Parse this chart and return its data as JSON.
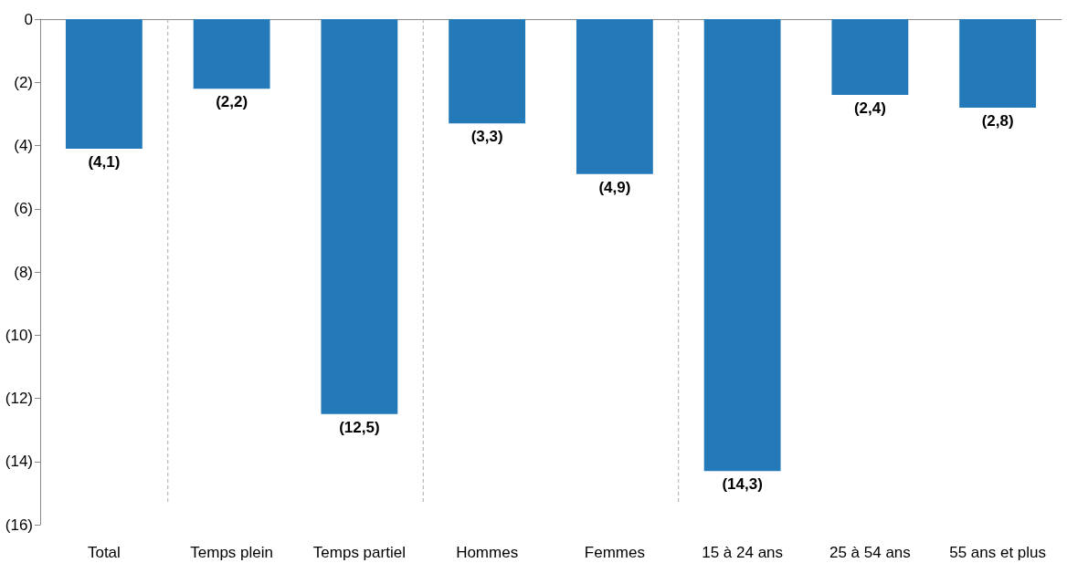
{
  "chart_data": {
    "type": "bar",
    "categories": [
      "Total",
      "Temps plein",
      "Temps partiel",
      "Hommes",
      "Femmes",
      "15 à 24 ans",
      "25 à 54 ans",
      "55 ans et plus"
    ],
    "values": [
      -4.1,
      -2.2,
      -12.5,
      -3.3,
      -4.9,
      -14.3,
      -2.4,
      -2.8
    ],
    "value_labels": [
      "(4,1)",
      "(2,2)",
      "(12,5)",
      "(3,3)",
      "(4,9)",
      "(14,3)",
      "(2,4)",
      "(2,8)"
    ],
    "color": "#2479b9",
    "ylim": [
      -16,
      0
    ],
    "yticks": [
      {
        "value": -16,
        "label": "(16)"
      },
      {
        "value": -14,
        "label": "(14)"
      },
      {
        "value": -12,
        "label": "(12)"
      },
      {
        "value": -10,
        "label": "(10)"
      },
      {
        "value": -8,
        "label": "(8)"
      },
      {
        "value": -6,
        "label": "(6)"
      },
      {
        "value": -4,
        "label": "(4)"
      },
      {
        "value": -2,
        "label": "(2)"
      },
      0
    ]
  }
}
